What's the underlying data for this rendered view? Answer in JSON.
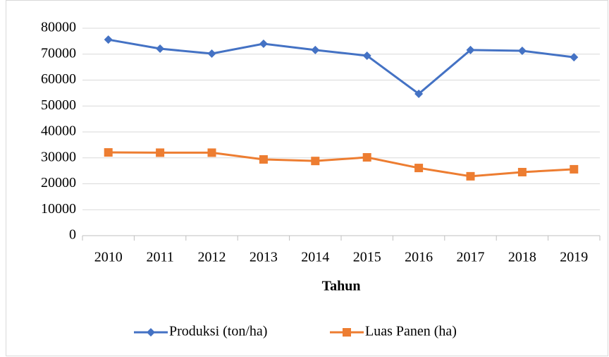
{
  "chart_data": {
    "type": "line",
    "x_label": "Tahun",
    "categories": [
      "2010",
      "2011",
      "2012",
      "2013",
      "2014",
      "2015",
      "2016",
      "2017",
      "2018",
      "2019"
    ],
    "series": [
      {
        "name": "Produksi (ton/ha)",
        "color": "#4472c4",
        "marker": "diamond",
        "values": [
          75600,
          72100,
          70200,
          74000,
          71600,
          69400,
          54700,
          71600,
          71300,
          68800
        ]
      },
      {
        "name": "Luas Panen (ha)",
        "color": "#ed7d31",
        "marker": "square",
        "values": [
          32100,
          32000,
          32000,
          29400,
          28800,
          30200,
          26100,
          22900,
          24500,
          25600
        ]
      }
    ],
    "ylim": [
      0,
      80000
    ],
    "yticks": [
      0,
      10000,
      20000,
      30000,
      40000,
      50000,
      60000,
      70000,
      80000
    ],
    "grid": true,
    "legend": "bottom"
  }
}
